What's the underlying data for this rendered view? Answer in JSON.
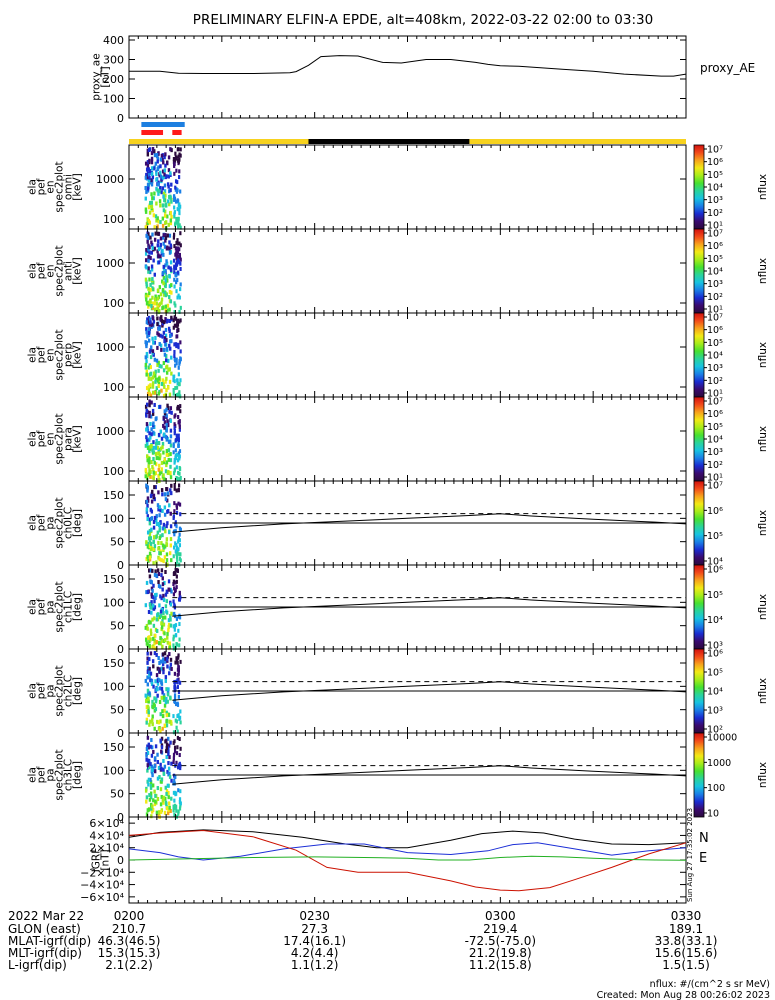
{
  "title": "PRELIMINARY ELFIN-A EPDE, alt=408km, 2022-03-22 02:00 to 03:30",
  "colors": {
    "sunlit": "#f7d21e",
    "shadow": "#000000",
    "science_blue": "#1d7fe0",
    "science_red": "#ff1a1a",
    "grf_x": "#000000",
    "grf_y": "#1c2fd6",
    "grf_z": "#cc1100",
    "grf_e": "#22b022"
  },
  "orbit_bars": {
    "blue": [
      [
        2.0,
        9.0
      ]
    ],
    "red": [
      [
        2.0,
        5.5
      ],
      [
        7.0,
        8.5
      ]
    ],
    "sunlit": [
      [
        0,
        29
      ],
      [
        55,
        90
      ]
    ],
    "shadow": [
      [
        29,
        55
      ]
    ]
  },
  "panels": {
    "proxy": {
      "ylabel": [
        "proxy_ae",
        "[nT]"
      ],
      "legend": "proxy_AE",
      "yticks": [
        "400",
        "300",
        "200",
        "100",
        "0"
      ]
    },
    "energy": [
      {
        "ylabel": [
          "ela",
          "pef",
          "en",
          "spec2plot",
          "omni",
          "[keV]"
        ],
        "yticks": [
          "1000",
          "100"
        ]
      },
      {
        "ylabel": [
          "ela",
          "pef",
          "en",
          "spec2plot",
          "anti",
          "[keV]"
        ],
        "yticks": [
          "1000",
          "100"
        ]
      },
      {
        "ylabel": [
          "ela",
          "pef",
          "en",
          "spec2plot",
          "perp",
          "[keV]"
        ],
        "yticks": [
          "1000",
          "100"
        ]
      },
      {
        "ylabel": [
          "ela",
          "pef",
          "en",
          "spec2plot",
          "para",
          "[keV]"
        ],
        "yticks": [
          "1000",
          "100"
        ]
      }
    ],
    "pitch": [
      {
        "ylabel": [
          "ela",
          "pef",
          "pa",
          "spec2plot",
          "ch0LC",
          "[deg]"
        ],
        "yticks": [
          "150",
          "100",
          "50",
          "0"
        ]
      },
      {
        "ylabel": [
          "ela",
          "pef",
          "pa",
          "spec2plot",
          "ch1LC",
          "[deg]"
        ],
        "yticks": [
          "150",
          "100",
          "50",
          "0"
        ]
      },
      {
        "ylabel": [
          "ela",
          "pef",
          "pa",
          "spec2plot",
          "ch2LC",
          "[deg]"
        ],
        "yticks": [
          "150",
          "100",
          "50",
          "0"
        ]
      },
      {
        "ylabel": [
          "ela",
          "pef",
          "pa",
          "spec2plot",
          "ch3LC",
          "[deg]"
        ],
        "yticks": [
          "150",
          "100",
          "50",
          "0"
        ]
      }
    ],
    "grf": {
      "ylabel": [
        "IGRF",
        "[nT]"
      ],
      "yticks": [
        "6×10⁴",
        "4×10⁴",
        "2×10⁴",
        "0",
        "−2×10⁴",
        "−4×10⁴",
        "−6×10⁴"
      ],
      "legend": [
        "N",
        "E"
      ]
    }
  },
  "colorbars": [
    {
      "label": "nflux",
      "ticks": [
        "10⁷",
        "10⁶",
        "10⁵",
        "10⁴",
        "10³",
        "10²",
        "10¹"
      ]
    },
    {
      "label": "nflux",
      "ticks": [
        "10⁷",
        "10⁶",
        "10⁵",
        "10⁴",
        "10³",
        "10²",
        "10¹"
      ]
    },
    {
      "label": "nflux",
      "ticks": [
        "10⁷",
        "10⁶",
        "10⁵",
        "10⁴",
        "10³",
        "10²",
        "10¹"
      ]
    },
    {
      "label": "nflux",
      "ticks": [
        "10⁷",
        "10⁶",
        "10⁵",
        "10⁴",
        "10³",
        "10²",
        "10¹"
      ]
    },
    {
      "label": "nflux",
      "ticks": [
        "10⁷",
        "10⁶",
        "10⁵",
        "10⁴"
      ]
    },
    {
      "label": "nflux",
      "ticks": [
        "10⁶",
        "10⁵",
        "10⁴",
        "10³"
      ]
    },
    {
      "label": "nflux",
      "ticks": [
        "10⁶",
        "10⁵",
        "10⁴",
        "10³",
        "10²"
      ]
    },
    {
      "label": "nflux",
      "ticks": [
        "10000",
        "1000",
        "100",
        "10"
      ]
    }
  ],
  "side_note": "Sun Aug 27 17:35:02 2023",
  "footer": {
    "date": "2022 Mar 22",
    "row_labels": [
      "GLON (east)",
      "MLAT-igrf(dip)",
      "MLT-igrf(dip)",
      "L-igrf(dip)"
    ],
    "columns": [
      {
        "time": "0200",
        "values": [
          "210.7",
          "46.3(46.5)",
          "15.3(15.3)",
          "2.1(2.2)"
        ]
      },
      {
        "time": "0230",
        "values": [
          "27.3",
          "17.4(16.1)",
          "4.2(4.4)",
          "1.1(1.2)"
        ]
      },
      {
        "time": "0300",
        "values": [
          "219.4",
          "-72.5(-75.0)",
          "21.2(19.8)",
          "11.2(15.8)"
        ]
      },
      {
        "time": "0330",
        "values": [
          "189.1",
          "33.8(33.1)",
          "15.6(15.6)",
          "1.5(1.5)"
        ]
      }
    ],
    "units_note": "nflux: #/(cm^2 s sr MeV)",
    "created": "Created: Mon Aug 28 00:26:02 2023"
  },
  "chart_data": {
    "type": "line",
    "x_range_minutes": [
      0,
      90
    ],
    "x_tick_minutes": [
      0,
      30,
      60,
      90
    ],
    "proxy_ae": {
      "ylim": [
        0,
        400
      ],
      "x": [
        0,
        5,
        8,
        12,
        20,
        26,
        27,
        29,
        31,
        34,
        37,
        41,
        44,
        48,
        52,
        56,
        58,
        60,
        63,
        70,
        75,
        80,
        86,
        88,
        90
      ],
      "y": [
        240,
        240,
        230,
        228,
        228,
        232,
        238,
        270,
        315,
        320,
        318,
        285,
        282,
        300,
        300,
        285,
        275,
        268,
        265,
        250,
        240,
        225,
        215,
        215,
        225
      ]
    },
    "lc_line": {
      "ylim": [
        0,
        180
      ],
      "x": [
        7,
        15,
        25,
        35,
        45,
        55,
        60,
        65,
        75,
        85,
        90
      ],
      "y": [
        70,
        80,
        88,
        94,
        100,
        106,
        110,
        105,
        98,
        92,
        88
      ]
    },
    "lc_dashed": 110,
    "lc_solid": 90,
    "grf": {
      "ylim": [
        -70000,
        70000
      ],
      "series": [
        {
          "name": "x",
          "x": [
            0,
            5,
            12,
            20,
            28,
            35,
            40,
            45,
            52,
            57,
            62,
            67,
            72,
            78,
            84,
            90
          ],
          "y": [
            37000,
            45000,
            49000,
            46000,
            37000,
            26000,
            20000,
            20000,
            32000,
            43000,
            47000,
            44000,
            34000,
            26000,
            25000,
            28000
          ]
        },
        {
          "name": "y",
          "x": [
            0,
            5,
            8,
            12,
            18,
            25,
            32,
            38,
            45,
            52,
            58,
            62,
            66,
            72,
            78,
            84,
            90
          ],
          "y": [
            18000,
            12000,
            5000,
            0,
            6000,
            18000,
            26000,
            26000,
            12000,
            9000,
            15000,
            25000,
            28000,
            18000,
            8000,
            15000,
            20000
          ]
        },
        {
          "name": "z",
          "x": [
            0,
            5,
            12,
            20,
            27,
            32,
            37,
            45,
            52,
            56,
            60,
            63,
            68,
            72,
            78,
            84,
            90
          ],
          "y": [
            40000,
            44000,
            48000,
            38000,
            16000,
            -12000,
            -20000,
            -20000,
            -34000,
            -44000,
            -49000,
            -50000,
            -45000,
            -32000,
            -12000,
            10000,
            28000
          ]
        },
        {
          "name": "e",
          "x": [
            0,
            10,
            20,
            30,
            38,
            45,
            50,
            55,
            60,
            65,
            70,
            75,
            80,
            85,
            90
          ],
          "y": [
            0,
            2000,
            4000,
            5000,
            4000,
            3000,
            0,
            0,
            4000,
            6000,
            5000,
            3000,
            1000,
            0,
            -500
          ]
        }
      ]
    }
  }
}
